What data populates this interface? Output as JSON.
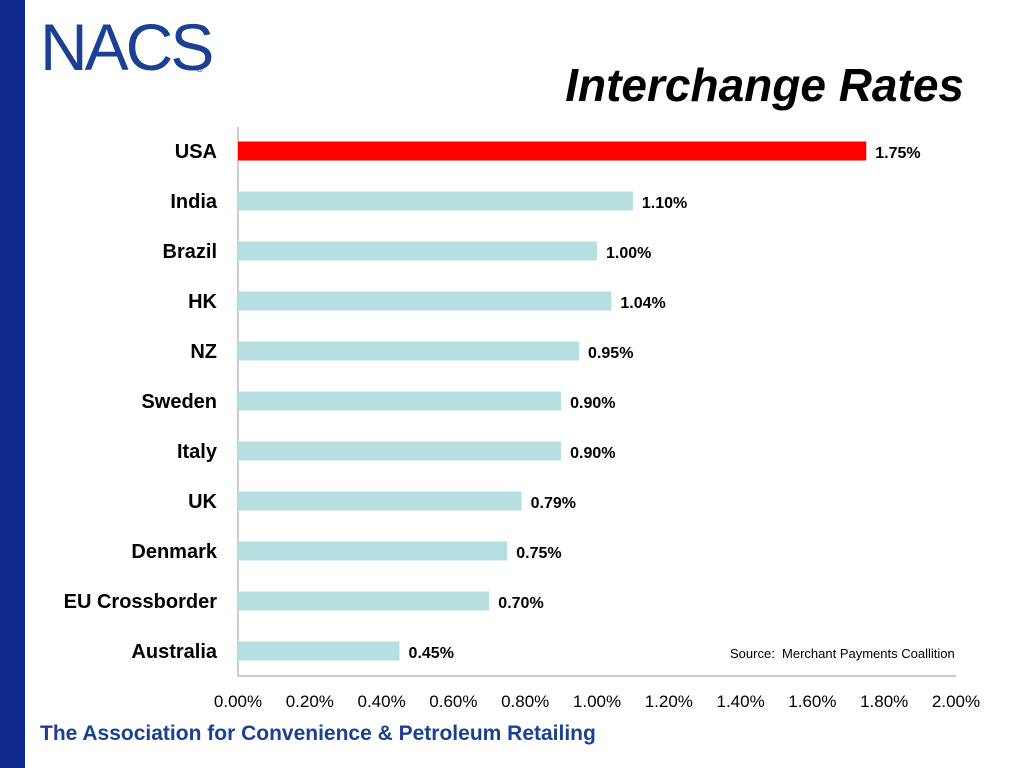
{
  "header": {
    "logo_text": "NACS",
    "logo_reg": "®",
    "title": "Interchange Rates"
  },
  "footer": {
    "text": "The Association for Convenience & Petroleum Retailing"
  },
  "source_note": "Source:  Merchant Payments Coallition",
  "colors": {
    "side_bar": "#0f2a8a",
    "brand_blue": "#1b3f95",
    "highlight_bar": "#ff0000",
    "bar": "#b7dfe2",
    "axis": "#999999"
  },
  "chart_data": {
    "type": "bar",
    "orientation": "horizontal",
    "title": "Interchange Rates",
    "categories": [
      "USA",
      "India",
      "Brazil",
      "HK",
      "NZ",
      "Sweden",
      "Italy",
      "UK",
      "Denmark",
      "EU Crossborder",
      "Australia"
    ],
    "values": [
      1.75,
      1.1,
      1.0,
      1.04,
      0.95,
      0.9,
      0.9,
      0.79,
      0.75,
      0.7,
      0.45
    ],
    "value_labels": [
      "1.75%",
      "1.10%",
      "1.00%",
      "1.04%",
      "0.95%",
      "0.90%",
      "0.90%",
      "0.79%",
      "0.75%",
      "0.70%",
      "0.45%"
    ],
    "highlight_category": "USA",
    "xlim": [
      0,
      2.0
    ],
    "xticks": [
      0,
      0.2,
      0.4,
      0.6,
      0.8,
      1.0,
      1.2,
      1.4,
      1.6,
      1.8,
      2.0
    ],
    "xtick_labels": [
      "0.00%",
      "0.20%",
      "0.40%",
      "0.60%",
      "0.80%",
      "1.00%",
      "1.20%",
      "1.40%",
      "1.60%",
      "1.80%",
      "2.00%"
    ],
    "xlabel": "",
    "ylabel": "",
    "grid": false,
    "legend": false
  }
}
